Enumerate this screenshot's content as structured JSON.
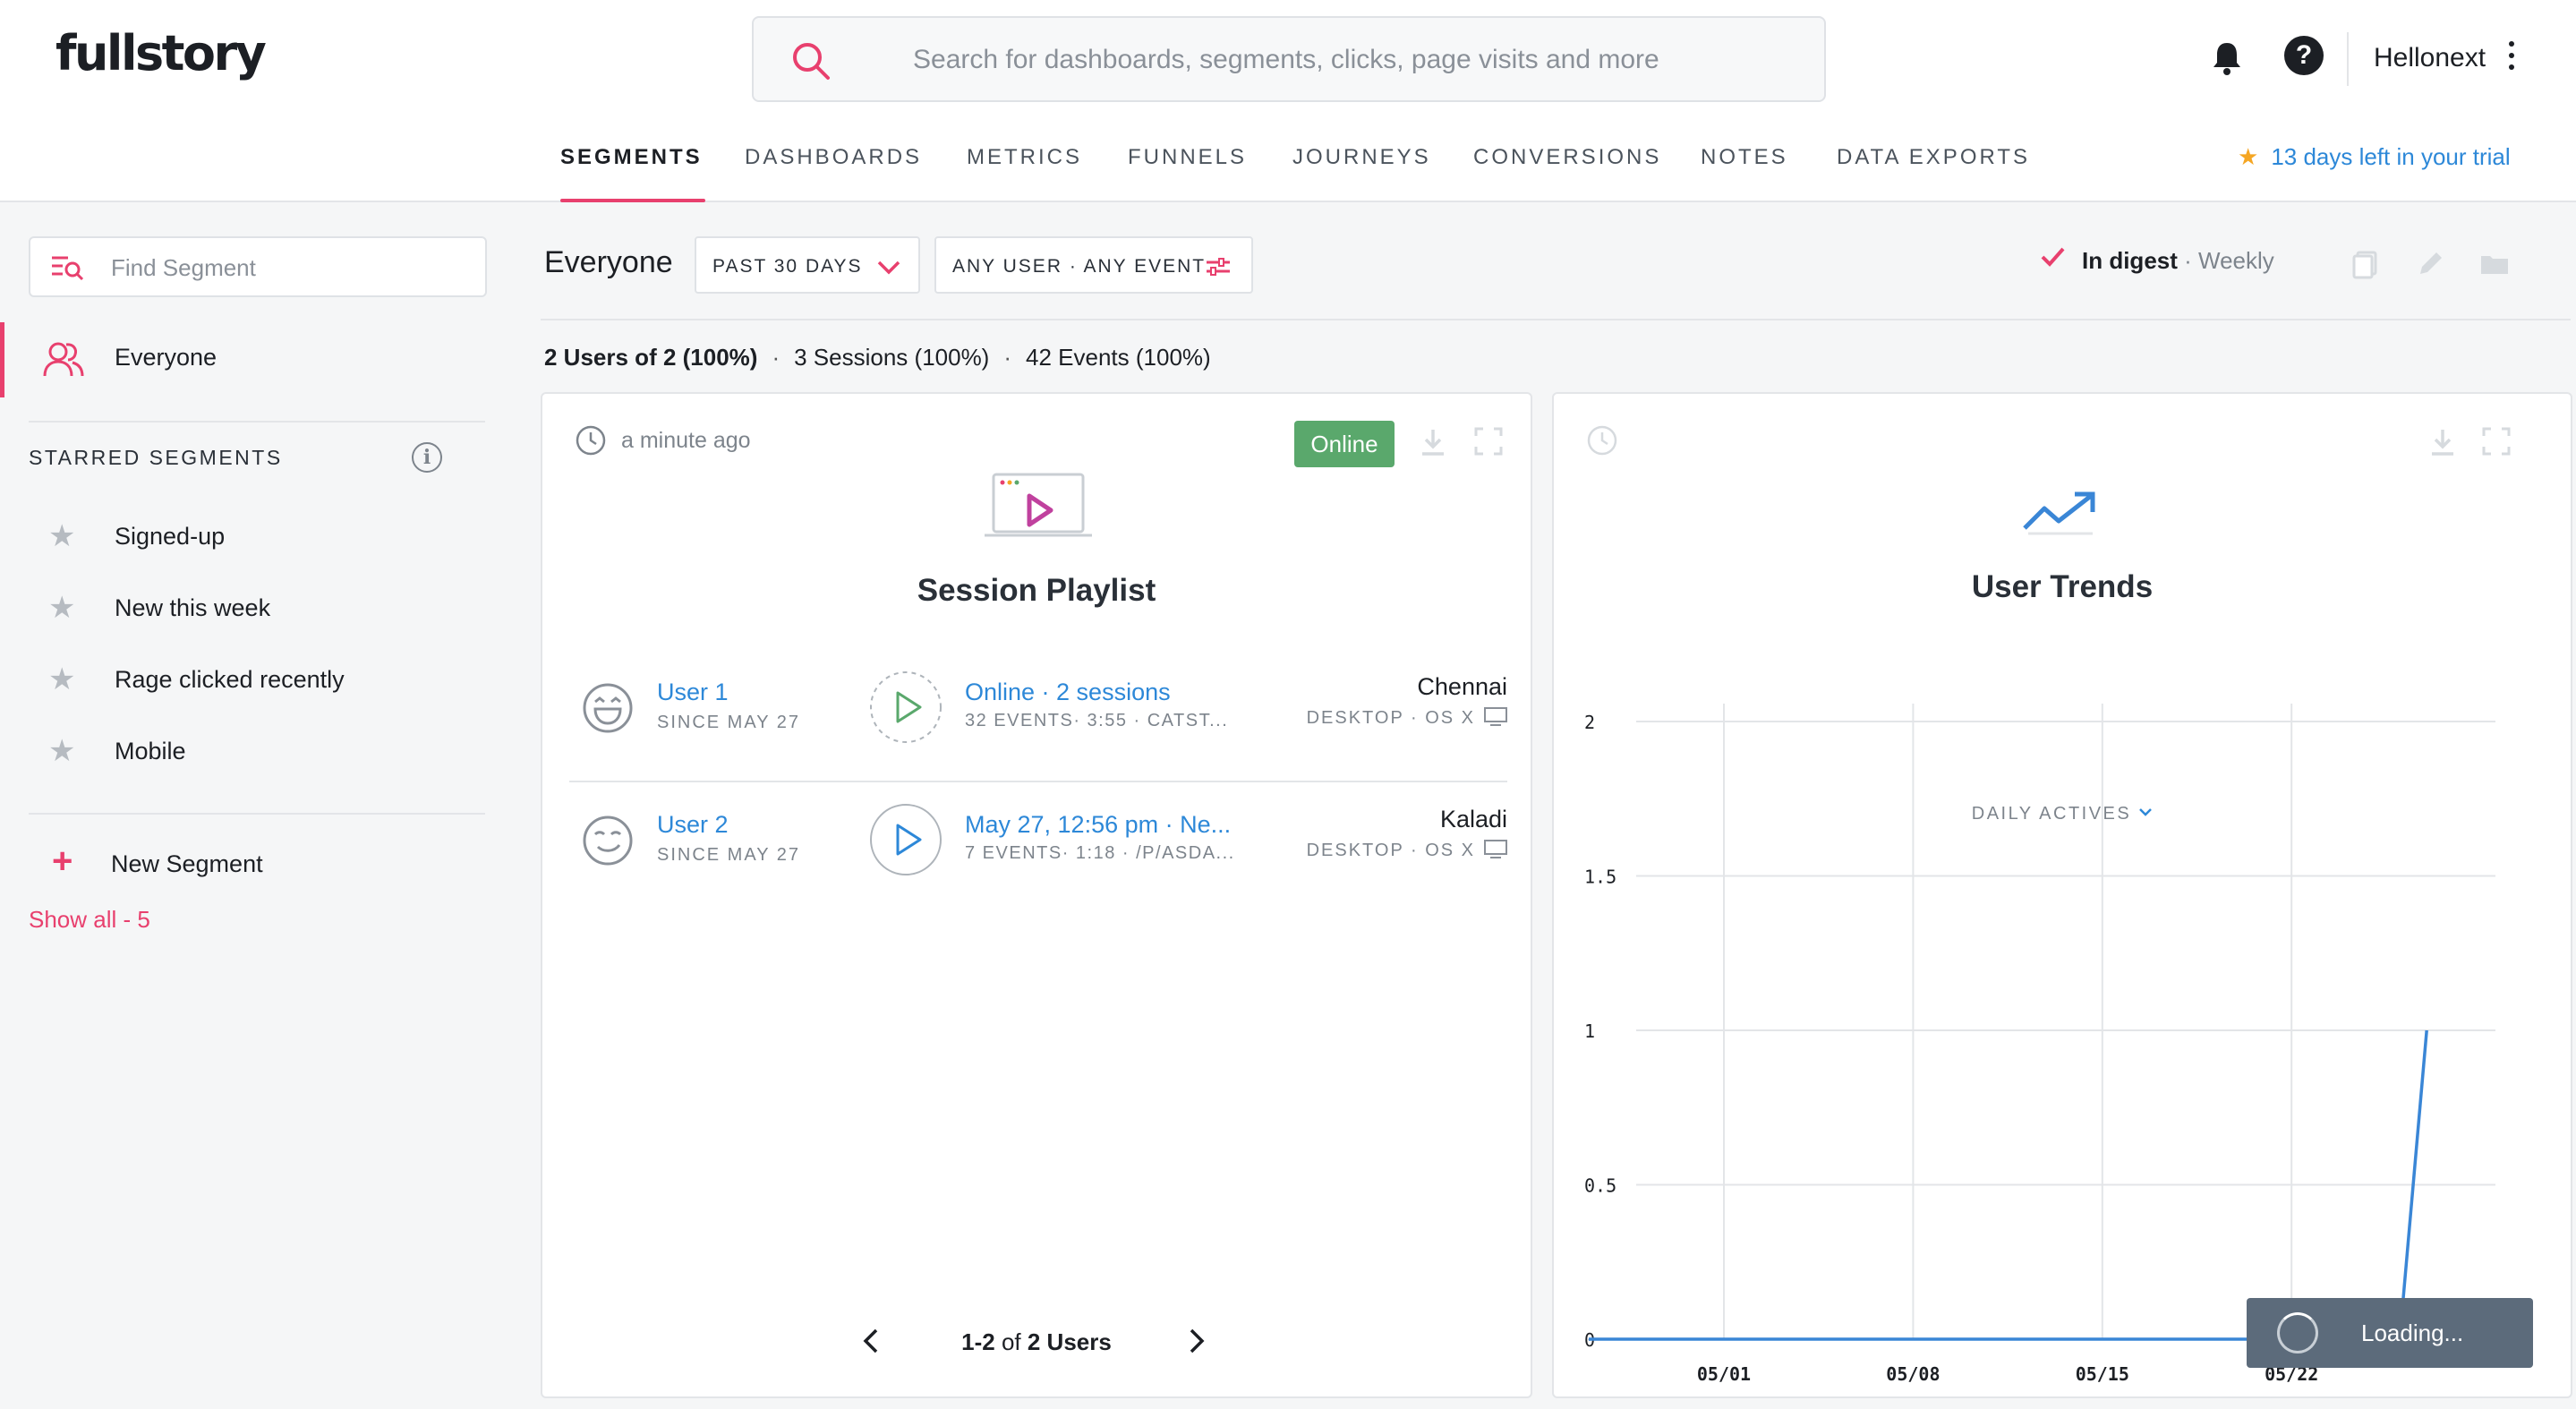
{
  "app": {
    "logo": "fullstory"
  },
  "search": {
    "placeholder": "Search for dashboards, segments, clicks, page visits and more"
  },
  "header": {
    "account_name": "Hellonext",
    "help_glyph": "?",
    "trial_text": "13 days left in your trial",
    "trial_icon": "star-icon"
  },
  "nav": {
    "tabs": [
      {
        "label": "SEGMENTS",
        "active": true
      },
      {
        "label": "DASHBOARDS"
      },
      {
        "label": "METRICS"
      },
      {
        "label": "FUNNELS"
      },
      {
        "label": "JOURNEYS"
      },
      {
        "label": "CONVERSIONS"
      },
      {
        "label": "NOTES"
      },
      {
        "label": "DATA EXPORTS"
      }
    ]
  },
  "sidebar": {
    "find_placeholder": "Find Segment",
    "everyone_label": "Everyone",
    "starred_heading": "STARRED SEGMENTS",
    "info_glyph": "i",
    "starred": [
      {
        "label": "Signed-up"
      },
      {
        "label": "New this week"
      },
      {
        "label": "Rage clicked recently"
      },
      {
        "label": "Mobile"
      }
    ],
    "new_segment_label": "New Segment",
    "show_all_label": "Show all - 5"
  },
  "main": {
    "segment_title": "Everyone",
    "date_filter": "PAST 30 DAYS",
    "user_event_filter": "ANY USER · ANY EVENT",
    "digest_label": "In digest",
    "digest_freq": "· Weekly",
    "stats": {
      "users": "2 Users of 2 (100%)",
      "sessions": "3 Sessions (100%)",
      "events": "42 Events (100%)",
      "separator": "·"
    }
  },
  "playlist": {
    "updated": "a minute ago",
    "status_badge": "Online",
    "title": "Session Playlist",
    "users": [
      {
        "name": "User 1",
        "since": "SINCE MAY 27",
        "session_title": "Online · 2 sessions",
        "session_meta": "32 EVENTS· 3:55 · CATST...",
        "city": "Chennai",
        "device": "DESKTOP · OS X",
        "face": "laughing-face-icon"
      },
      {
        "name": "User 2",
        "since": "SINCE MAY 27",
        "session_title": "May 27, 12:56 pm · Ne...",
        "session_meta": "7 EVENTS· 1:18 · /P/ASDA...",
        "city": "Kaladi",
        "device": "DESKTOP · OS X",
        "face": "smirking-face-icon"
      }
    ],
    "pager_range": "1-2",
    "pager_of": "of",
    "pager_total": "2 Users"
  },
  "trends": {
    "title": "User Trends",
    "metric": "DAILY ACTIVES"
  },
  "chart_data": {
    "type": "line",
    "title": "User Trends",
    "subtitle": "DAILY ACTIVES",
    "xlabel": "",
    "ylabel": "",
    "x_start": "05/01",
    "x_ticks": [
      "05/01",
      "05/08",
      "05/15",
      "05/22"
    ],
    "y_ticks": [
      "0",
      "0.5",
      "1",
      "1.5",
      "2"
    ],
    "ylim": [
      0,
      2
    ],
    "grid": true,
    "legend": "none",
    "color": "#3a86d6",
    "series": [
      {
        "values": [
          {
            "x": "04/27",
            "y": 0
          },
          {
            "x": "05/01",
            "y": 0
          },
          {
            "x": "05/08",
            "y": 0
          },
          {
            "x": "05/15",
            "y": 0
          },
          {
            "x": "05/22",
            "y": 0
          },
          {
            "x": "05/26",
            "y": 0
          },
          {
            "x": "05/27",
            "y": 1
          }
        ]
      }
    ]
  },
  "toast": {
    "loading_label": "Loading..."
  },
  "colors": {
    "brand": "#e8406e",
    "link": "#2d88d8",
    "online": "#5aa86c",
    "toast": "#5c6b7b"
  }
}
